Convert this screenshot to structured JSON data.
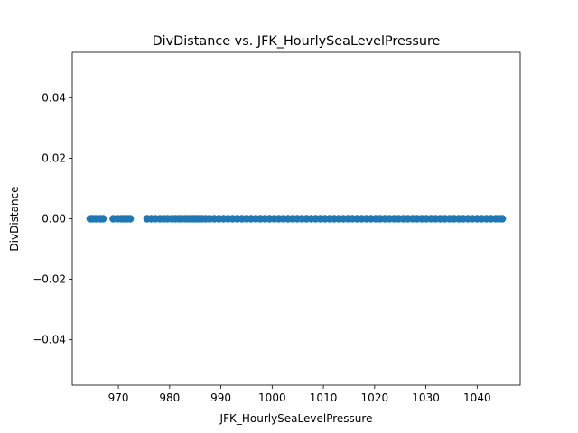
{
  "chart_data": {
    "type": "scatter",
    "title": "DivDistance vs. JFK_HourlySeaLevelPressure",
    "xlabel": "JFK_HourlySeaLevelPressure",
    "ylabel": "DivDistance",
    "xlim": [
      961.0,
      1048.4
    ],
    "ylim": [
      -0.055,
      0.055
    ],
    "xticks": [
      970,
      980,
      990,
      1000,
      1010,
      1020,
      1030,
      1040
    ],
    "yticks": [
      -0.04,
      -0.02,
      0.0,
      0.02,
      0.04
    ],
    "ytick_labels": [
      "−0.04",
      "−0.02",
      "0.00",
      "0.02",
      "0.04"
    ],
    "grid": false,
    "color": "#1f77b4",
    "x": [
      964.5,
      965.0,
      965.6,
      966.5,
      967.0,
      969.0,
      969.8,
      970.5,
      971.0,
      971.7,
      972.3,
      975.6,
      976.4,
      977.2,
      978.1,
      978.9,
      979.6,
      980.4,
      981.1,
      981.8,
      982.4,
      983.1,
      983.8,
      984.5,
      985.0,
      985.6,
      986.3,
      987.0,
      987.8,
      988.7,
      989.6,
      990.5,
      991.4,
      992.3,
      993.2,
      994.1,
      995.0,
      995.9,
      996.8,
      997.7,
      998.6,
      999.5,
      1000.4,
      1001.3,
      1002.2,
      1003.1,
      1004.0,
      1004.9,
      1005.8,
      1006.7,
      1007.6,
      1008.5,
      1009.4,
      1010.3,
      1011.2,
      1012.1,
      1013.0,
      1013.9,
      1014.8,
      1015.7,
      1016.6,
      1017.5,
      1018.4,
      1019.3,
      1020.2,
      1021.1,
      1022.0,
      1022.9,
      1023.8,
      1024.7,
      1025.6,
      1026.5,
      1027.4,
      1028.3,
      1029.2,
      1030.1,
      1031.0,
      1031.9,
      1032.8,
      1033.7,
      1034.6,
      1035.5,
      1036.4,
      1037.3,
      1038.2,
      1039.1,
      1040.0,
      1040.9,
      1041.8,
      1042.7,
      1043.6,
      1044.3,
      1044.9
    ],
    "y": [
      0,
      0,
      0,
      0,
      0,
      0,
      0,
      0,
      0,
      0,
      0,
      0,
      0,
      0,
      0,
      0,
      0,
      0,
      0,
      0,
      0,
      0,
      0,
      0,
      0,
      0,
      0,
      0,
      0,
      0,
      0,
      0,
      0,
      0,
      0,
      0,
      0,
      0,
      0,
      0,
      0,
      0,
      0,
      0,
      0,
      0,
      0,
      0,
      0,
      0,
      0,
      0,
      0,
      0,
      0,
      0,
      0,
      0,
      0,
      0,
      0,
      0,
      0,
      0,
      0,
      0,
      0,
      0,
      0,
      0,
      0,
      0,
      0,
      0,
      0,
      0,
      0,
      0,
      0,
      0,
      0,
      0,
      0,
      0,
      0,
      0,
      0,
      0,
      0,
      0,
      0,
      0,
      0
    ]
  }
}
